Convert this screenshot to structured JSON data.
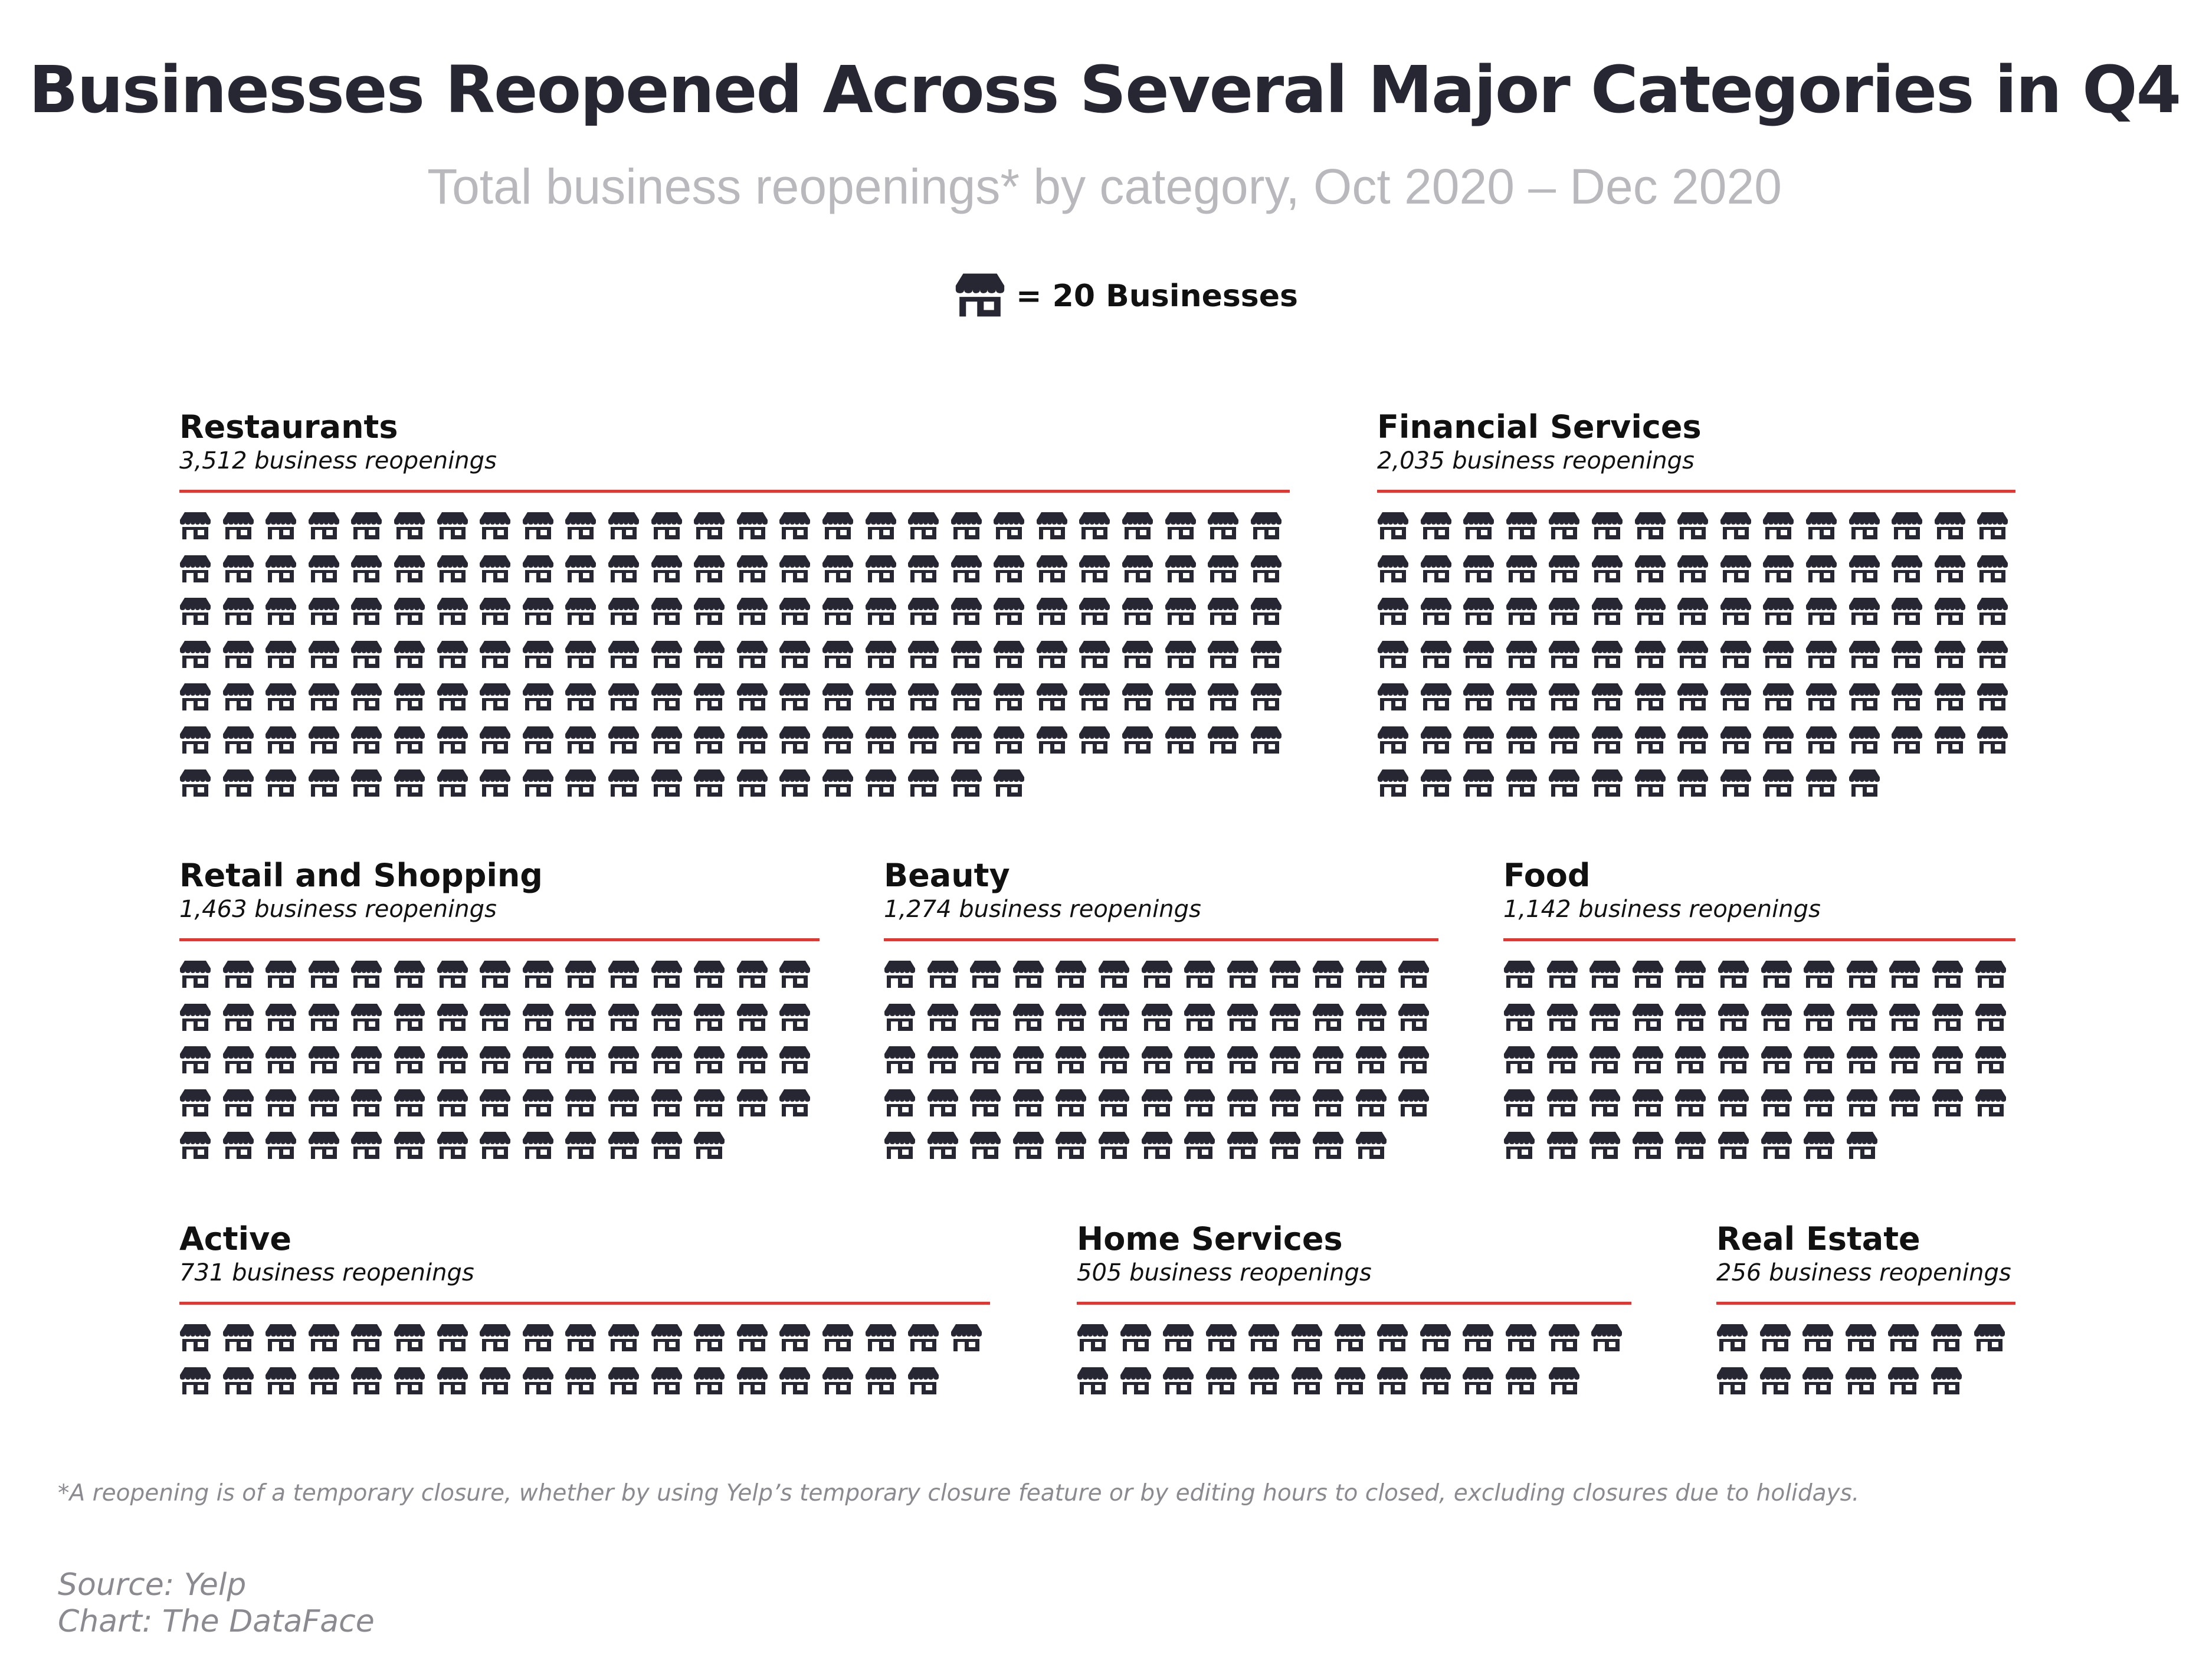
{
  "colors": {
    "icon": "#272633",
    "rule": "#e8342f",
    "title": "#272633",
    "subtitle": "#b9b9bd",
    "muted": "#8a8a90"
  },
  "legend": {
    "icon": "storefront-icon",
    "text": "= 20 Businesses",
    "unit_value": 20
  },
  "chart_data": {
    "type": "pictogram",
    "title": "Businesses Reopened Across Several Major Categories in Q4",
    "subtitle": "Total business reopenings* by category, Oct 2020 – Dec 2020",
    "icon_unit": 20,
    "categories": [
      {
        "name": "Restaurants",
        "value": 3512,
        "label": "3,512 business reopenings",
        "icons": 176
      },
      {
        "name": "Financial Services",
        "value": 2035,
        "label": "2,035 business reopenings",
        "icons": 102
      },
      {
        "name": "Retail and Shopping",
        "value": 1463,
        "label": "1,463 business reopenings",
        "icons": 73
      },
      {
        "name": "Beauty",
        "value": 1274,
        "label": "1,274 business reopenings",
        "icons": 64
      },
      {
        "name": "Food",
        "value": 1142,
        "label": "1,142 business reopenings",
        "icons": 57
      },
      {
        "name": "Active",
        "value": 731,
        "label": "731 business reopenings",
        "icons": 37
      },
      {
        "name": "Home Services",
        "value": 505,
        "label": "505 business reopenings",
        "icons": 25
      },
      {
        "name": "Real Estate",
        "value": 256,
        "label": "256 business reopenings",
        "icons": 13
      }
    ]
  },
  "footnote": "*A reopening is of a temporary closure, whether by using Yelp’s temporary closure feature or by editing hours to closed, excluding closures due to holidays.",
  "source": "Source: Yelp",
  "credit": "Chart: The DataFace"
}
